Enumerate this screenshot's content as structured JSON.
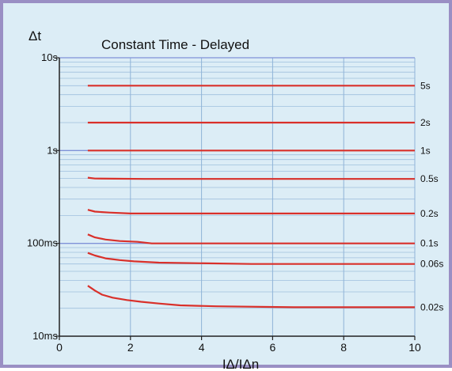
{
  "chart_data": {
    "type": "line",
    "title": "Constant Time - Delayed",
    "ylabel": "Δt",
    "xlabel": "IΔ/IΔn",
    "xlim": [
      0,
      10
    ],
    "ylim_log10": [
      -2,
      1
    ],
    "x_ticks": [
      {
        "value": 0,
        "label": "0"
      },
      {
        "value": 2,
        "label": "2"
      },
      {
        "value": 4,
        "label": "4"
      },
      {
        "value": 6,
        "label": "6"
      },
      {
        "value": 8,
        "label": "8"
      },
      {
        "value": 10,
        "label": "10"
      }
    ],
    "y_ticks": [
      {
        "value": 10,
        "label": "10s"
      },
      {
        "value": 1,
        "label": "1s"
      },
      {
        "value": 0.1,
        "label": "100ms"
      },
      {
        "value": 0.01,
        "label": "10ms"
      }
    ],
    "y_scale": "log",
    "grid": true,
    "line_color": "#d9302a",
    "series": [
      {
        "name": "5s",
        "x": [
          0.8,
          10
        ],
        "y": [
          5,
          5
        ]
      },
      {
        "name": "2s",
        "x": [
          0.8,
          10
        ],
        "y": [
          2,
          2
        ]
      },
      {
        "name": "1s",
        "x": [
          0.8,
          10
        ],
        "y": [
          1,
          1
        ]
      },
      {
        "name": "0.5s",
        "x": [
          0.8,
          1.0,
          2.4,
          10
        ],
        "y": [
          0.51,
          0.5,
          0.495,
          0.495
        ]
      },
      {
        "name": "0.2s",
        "x": [
          0.8,
          1.0,
          1.4,
          2.0,
          10
        ],
        "y": [
          0.23,
          0.22,
          0.215,
          0.21,
          0.21
        ]
      },
      {
        "name": "0.1s",
        "x": [
          0.8,
          1.0,
          1.3,
          1.7,
          2.2,
          2.6,
          10
        ],
        "y": [
          0.125,
          0.116,
          0.11,
          0.106,
          0.104,
          0.1,
          0.1
        ]
      },
      {
        "name": "0.06s",
        "x": [
          0.8,
          1.0,
          1.3,
          1.7,
          2.1,
          2.8,
          5.4,
          10
        ],
        "y": [
          0.079,
          0.074,
          0.069,
          0.066,
          0.064,
          0.062,
          0.06,
          0.06
        ]
      },
      {
        "name": "0.02s",
        "x": [
          0.8,
          1.0,
          1.2,
          1.5,
          1.9,
          2.3,
          2.8,
          3.4,
          4.4,
          6.6,
          10
        ],
        "y": [
          0.035,
          0.031,
          0.028,
          0.026,
          0.0245,
          0.0235,
          0.0225,
          0.0215,
          0.021,
          0.0205,
          0.0205
        ]
      }
    ]
  }
}
